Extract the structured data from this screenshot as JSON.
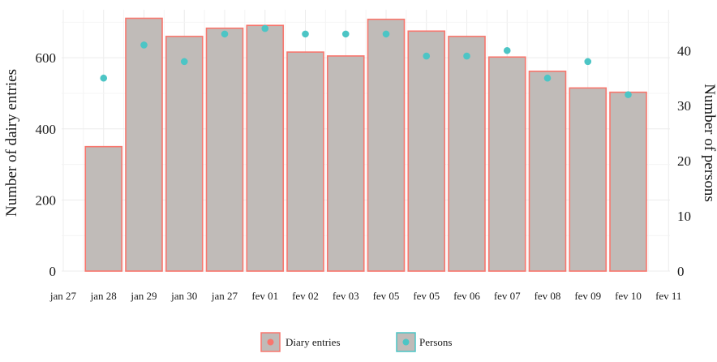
{
  "chart_data": {
    "type": "bar",
    "x_tick_labels": [
      "jan 27",
      "jan 28",
      "jan 29",
      "jan 30",
      "jan 27",
      "fev 01",
      "fev 02",
      "fev 03",
      "fev 05",
      "fev 05",
      "fev 06",
      "fev 07",
      "fev 08",
      "fev 09",
      "fev 10",
      "fev 11"
    ],
    "categories": [
      "jan 28",
      "jan 29",
      "jan 30",
      "jan 27",
      "fev 01",
      "fev 02",
      "fev 03",
      "fev 05",
      "fev 05",
      "fev 06",
      "fev 07",
      "fev 08",
      "fev 09",
      "fev 10"
    ],
    "series": [
      {
        "name": "Diary entries",
        "type": "bar",
        "axis": "left",
        "values": [
          350,
          711,
          660,
          683,
          691,
          616,
          605,
          708,
          675,
          660,
          602,
          562,
          515,
          503
        ]
      },
      {
        "name": "Persons",
        "type": "scatter",
        "axis": "right",
        "values": [
          35,
          41,
          38,
          43,
          44,
          43,
          43,
          43,
          39,
          39,
          40,
          35,
          38,
          32
        ]
      }
    ],
    "ylabel": "Number of dairy entries",
    "y2label": "Number of persons",
    "ylim": [
      0,
      735
    ],
    "y2lim": [
      0,
      47.4
    ],
    "yticks": [
      0,
      200,
      400,
      600
    ],
    "y2ticks": [
      0,
      10,
      20,
      30,
      40
    ],
    "grid": true,
    "legend_position": "bottom",
    "colors": {
      "bar_fill": "#c0bbb8",
      "bar_outline": "#f8766d",
      "point": "#4cc5c5",
      "grid": "#ececec"
    }
  }
}
